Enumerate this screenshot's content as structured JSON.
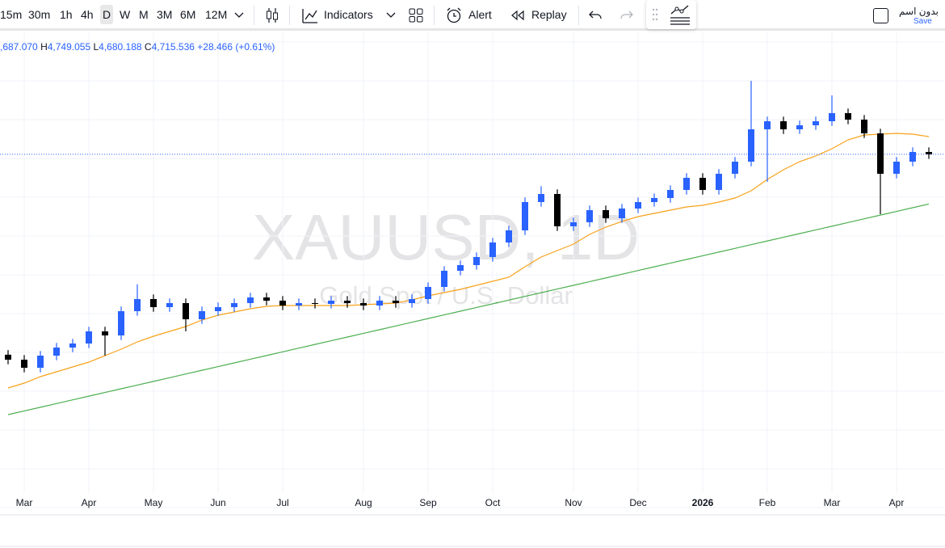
{
  "toolbar": {
    "intervals": [
      "15m",
      "30m",
      "1h",
      "4h",
      "D",
      "W",
      "M",
      "3M",
      "6M",
      "12M"
    ],
    "indicators": "Indicators",
    "alert": "Alert",
    "replay": "Replay",
    "layout_name": "بدون اسم",
    "save": "Save"
  },
  "legend": {
    "open": ",687.070",
    "high_label": "H",
    "high": "4,749.055",
    "low_label": "L",
    "low": "4,680.188",
    "close_label": "C",
    "close": "4,715.536",
    "change": "+28.466 (+0.61%)"
  },
  "watermark": {
    "symbol": "XAUUSD, 1D",
    "description": "Gold Spot / U.S. Dollar"
  },
  "chart_data": {
    "type": "candlestick",
    "x": [
      null,
      "Mar",
      null,
      null,
      null,
      "Apr",
      null,
      null,
      null,
      "May",
      null,
      null,
      null,
      "Jun",
      null,
      null,
      null,
      "Jul",
      null,
      null,
      null,
      null,
      "Aug",
      null,
      null,
      null,
      "Sep",
      null,
      null,
      null,
      "Oct",
      null,
      null,
      null,
      null,
      "Nov",
      null,
      null,
      null,
      "Dec",
      null,
      null,
      null,
      "2026",
      null,
      null,
      null,
      "Feb",
      null,
      null,
      null,
      "Mar",
      null,
      null,
      null,
      "Apr",
      null,
      null
    ],
    "open": [
      2980,
      2937,
      2867,
      2972,
      3042,
      3077,
      3182,
      3147,
      3357,
      3462,
      3392,
      3427,
      3287,
      3357,
      3392,
      3427,
      3476,
      3448,
      3406,
      3427,
      3420,
      3448,
      3427,
      3406,
      3448,
      3427,
      3462,
      3567,
      3707,
      3756,
      3826,
      3952,
      4057,
      4302,
      4372,
      4092,
      4127,
      4232,
      4162,
      4246,
      4302,
      4337,
      4407,
      4512,
      4407,
      4547,
      4652,
      4932,
      5002,
      4932,
      4967,
      5002,
      5072,
      5016,
      4897,
      4547,
      4652,
      4736
    ],
    "high": [
      3020,
      2977,
      3012,
      3082,
      3117,
      3222,
      3222,
      3397,
      3590,
      3502,
      3467,
      3467,
      3397,
      3432,
      3467,
      3516,
      3516,
      3488,
      3467,
      3467,
      3488,
      3488,
      3467,
      3488,
      3488,
      3502,
      3607,
      3747,
      3796,
      3866,
      3992,
      4097,
      4342,
      4440,
      4412,
      4167,
      4272,
      4272,
      4286,
      4342,
      4377,
      4447,
      4552,
      4552,
      4587,
      4692,
      5352,
      5042,
      5042,
      5007,
      5042,
      5226,
      5112,
      5056,
      4937,
      4692,
      4776,
      4776
    ],
    "low": [
      2897,
      2827,
      2827,
      2932,
      3002,
      3037,
      2972,
      3107,
      3317,
      3352,
      3352,
      3182,
      3247,
      3317,
      3352,
      3387,
      3408,
      3366,
      3366,
      3380,
      3380,
      3387,
      3366,
      3366,
      3387,
      3387,
      3422,
      3527,
      3667,
      3716,
      3786,
      3912,
      4017,
      4262,
      4052,
      4052,
      4087,
      4122,
      4122,
      4206,
      4262,
      4297,
      4367,
      4367,
      4367,
      4507,
      4612,
      4477,
      4892,
      4892,
      4927,
      4962,
      4976,
      4857,
      4197,
      4507,
      4612,
      4676
    ],
    "close": [
      2937,
      2867,
      2972,
      3042,
      3077,
      3182,
      3147,
      3357,
      3462,
      3392,
      3427,
      3287,
      3357,
      3392,
      3427,
      3476,
      3448,
      3406,
      3427,
      3420,
      3448,
      3427,
      3406,
      3448,
      3427,
      3462,
      3567,
      3707,
      3756,
      3826,
      3952,
      4057,
      4302,
      4372,
      4092,
      4127,
      4232,
      4162,
      4246,
      4302,
      4337,
      4407,
      4512,
      4407,
      4547,
      4652,
      4932,
      5002,
      4932,
      4967,
      5002,
      5072,
      5016,
      4897,
      4547,
      4652,
      4736,
      4716
    ],
    "up_color": "#2962ff",
    "down_color": "#000000",
    "ylim": [
      1593,
      5772
    ],
    "series": [
      {
        "color": "#f7a21b",
        "values": [
          2692,
          2734,
          2790,
          2832,
          2874,
          2916,
          2972,
          3028,
          3091,
          3140,
          3182,
          3224,
          3280,
          3322,
          3350,
          3378,
          3399,
          3406,
          3406,
          3406,
          3406,
          3406,
          3413,
          3420,
          3427,
          3455,
          3490,
          3518,
          3546,
          3581,
          3616,
          3651,
          3742,
          3826,
          3882,
          3938,
          4022,
          4085,
          4134,
          4176,
          4204,
          4232,
          4260,
          4274,
          4302,
          4337,
          4400,
          4498,
          4582,
          4652,
          4701,
          4764,
          4841,
          4883,
          4890,
          4897,
          4890,
          4869
        ]
      },
      {
        "color": "#4caf50",
        "values": [
          2461,
          2493,
          2525,
          2557,
          2589,
          2621,
          2653,
          2685,
          2717,
          2749,
          2781,
          2813,
          2845,
          2877,
          2909,
          2941,
          2973,
          3005,
          3037,
          3069,
          3101,
          3133,
          3165,
          3197,
          3229,
          3261,
          3293,
          3325,
          3357,
          3389,
          3421,
          3453,
          3485,
          3517,
          3549,
          3581,
          3613,
          3645,
          3677,
          3709,
          3741,
          3773,
          3805,
          3837,
          3869,
          3901,
          3933,
          3965,
          3997,
          4029,
          4061,
          4093,
          4125,
          4157,
          4189,
          4221,
          4253,
          4285
        ]
      }
    ]
  }
}
